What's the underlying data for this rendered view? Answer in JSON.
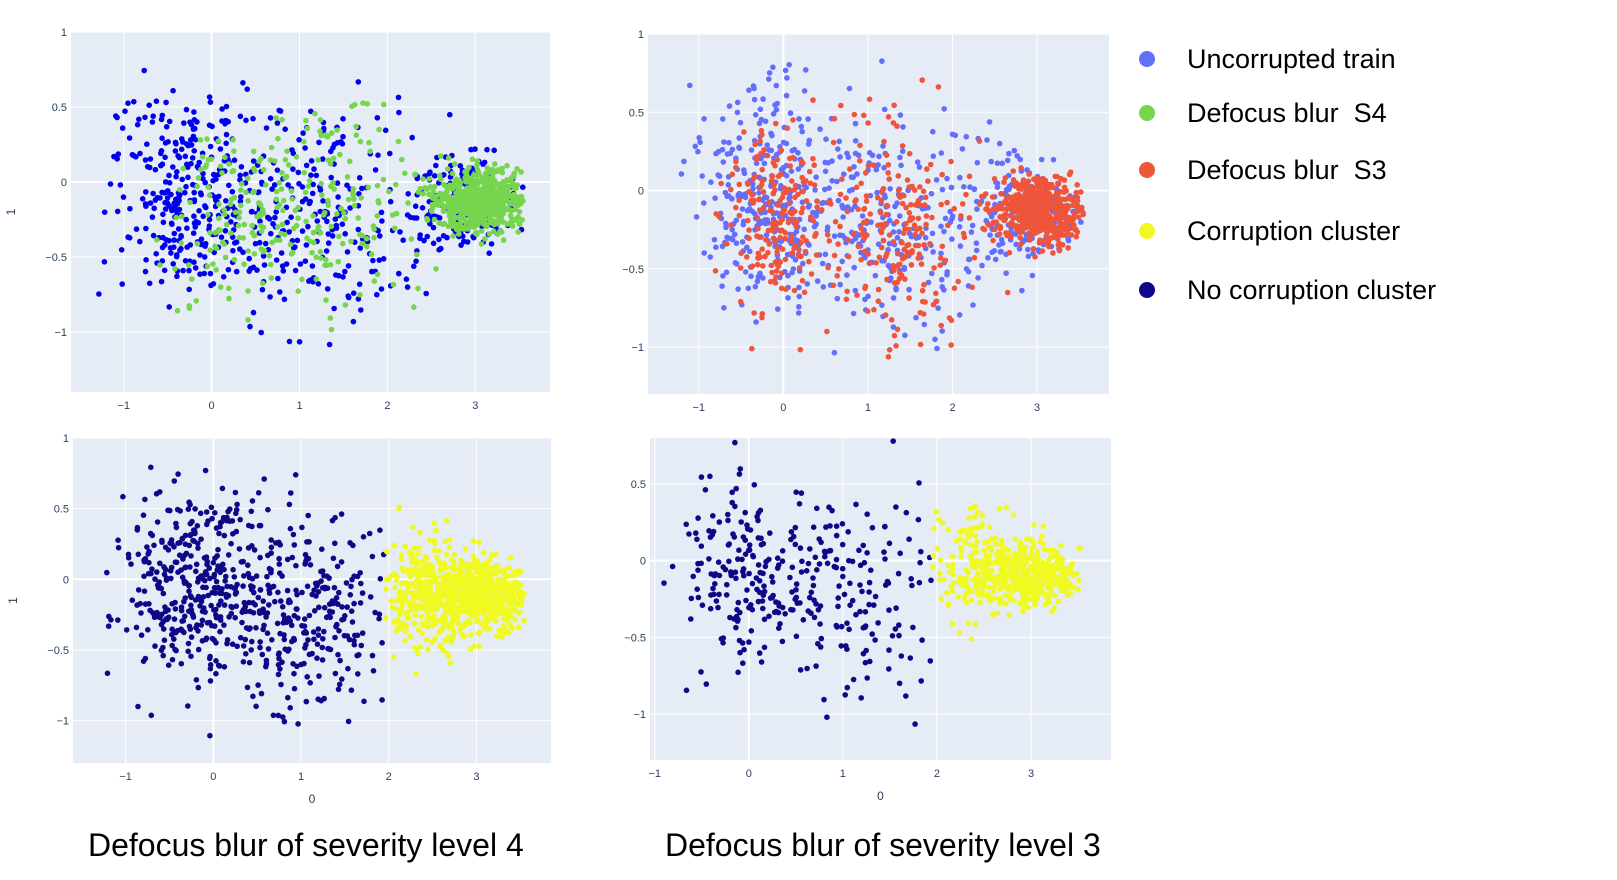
{
  "colors": {
    "plot_bg": "#e5ecf6",
    "grid": "#ffffff",
    "uncorrupted_s4_panel": "#0000ee",
    "defocus_s4": "#76d54d",
    "uncorrupted_train": "#636efa",
    "defocus_s3": "#ef553b",
    "corruption_cluster": "#f0f921",
    "no_corruption_cluster": "#0d0887"
  },
  "legend": {
    "items": [
      {
        "label": "Uncorrupted train",
        "color": "#636efa"
      },
      {
        "label": "Defocus blur  S4",
        "color": "#76d54d"
      },
      {
        "label": "Defocus blur  S3",
        "color": "#ef553b"
      },
      {
        "label": "Corruption cluster",
        "color": "#f0f921"
      },
      {
        "label": "No corruption cluster",
        "color": "#0d0887"
      }
    ]
  },
  "captions": {
    "left": "Defocus blur of severity level 4",
    "right": "Defocus blur of severity level 3"
  },
  "chart_data": [
    {
      "type": "scatter",
      "panel": "top-left",
      "xlabel": "",
      "ylabel": "1",
      "xlim": [
        -1.6,
        3.85
      ],
      "ylim": [
        -1.4,
        1.0
      ],
      "xticks": [
        -1,
        0,
        1,
        2,
        3
      ],
      "yticks": [
        -1,
        -0.5,
        0,
        0.5,
        1
      ],
      "ytick_labels": [
        "−1",
        "−0.5",
        "0",
        "0.5",
        "1"
      ],
      "xtick_labels": [
        "−1",
        "0",
        "1",
        "2",
        "3"
      ],
      "grid": true,
      "series": [
        {
          "color": "#0000ee",
          "gen": {
            "seed": 11,
            "count": 700,
            "clusters": [
              {
                "w": 0.42,
                "cx": -0.25,
                "cy": -0.05,
                "sx": 0.4,
                "sy": 0.35
              },
              {
                "w": 0.33,
                "cx": 1.2,
                "cy": -0.25,
                "sx": 0.55,
                "sy": 0.38
              },
              {
                "w": 0.25,
                "cx": 2.85,
                "cy": -0.12,
                "sx": 0.35,
                "sy": 0.18
              }
            ]
          }
        },
        {
          "color": "#76d54d",
          "gen": {
            "seed": 23,
            "count": 900,
            "clusters": [
              {
                "w": 0.12,
                "cx": 0.2,
                "cy": -0.2,
                "sx": 0.35,
                "sy": 0.3
              },
              {
                "w": 0.18,
                "cx": 1.4,
                "cy": -0.2,
                "sx": 0.5,
                "sy": 0.35
              },
              {
                "w": 0.7,
                "cx": 3.05,
                "cy": -0.13,
                "sx": 0.28,
                "sy": 0.1
              }
            ]
          }
        }
      ]
    },
    {
      "type": "scatter",
      "panel": "top-right",
      "xlabel": "",
      "ylabel": "",
      "xlim": [
        -1.6,
        3.85
      ],
      "ylim": [
        -1.3,
        1.0
      ],
      "xticks": [
        -1,
        0,
        1,
        2,
        3
      ],
      "yticks": [
        -1,
        -0.5,
        0,
        0.5,
        1
      ],
      "ytick_labels": [
        "−1",
        "−0.5",
        "0",
        "0.5",
        "1"
      ],
      "xtick_labels": [
        "−1",
        "0",
        "1",
        "2",
        "3"
      ],
      "grid": true,
      "series": [
        {
          "color": "#636efa",
          "gen": {
            "seed": 37,
            "count": 700,
            "clusters": [
              {
                "w": 0.42,
                "cx": -0.25,
                "cy": -0.05,
                "sx": 0.4,
                "sy": 0.35
              },
              {
                "w": 0.33,
                "cx": 1.2,
                "cy": -0.25,
                "sx": 0.55,
                "sy": 0.38
              },
              {
                "w": 0.25,
                "cx": 2.85,
                "cy": -0.12,
                "sx": 0.35,
                "sy": 0.18
              }
            ]
          }
        },
        {
          "color": "#ef553b",
          "gen": {
            "seed": 53,
            "count": 900,
            "clusters": [
              {
                "w": 0.2,
                "cx": -0.1,
                "cy": -0.15,
                "sx": 0.3,
                "sy": 0.3
              },
              {
                "w": 0.25,
                "cx": 1.3,
                "cy": -0.25,
                "sx": 0.55,
                "sy": 0.35
              },
              {
                "w": 0.55,
                "cx": 3.05,
                "cy": -0.13,
                "sx": 0.27,
                "sy": 0.1
              }
            ]
          }
        }
      ]
    },
    {
      "type": "scatter",
      "panel": "bottom-left",
      "xlabel": "0",
      "ylabel": "1",
      "xlim": [
        -1.6,
        3.85
      ],
      "ylim": [
        -1.3,
        1.0
      ],
      "xticks": [
        -1,
        0,
        1,
        2,
        3
      ],
      "yticks": [
        -1,
        -0.5,
        0,
        0.5,
        1
      ],
      "ytick_labels": [
        "−1",
        "−0.5",
        "0",
        "0.5",
        "1"
      ],
      "xtick_labels": [
        "−1",
        "0",
        "1",
        "2",
        "3"
      ],
      "grid": true,
      "series": [
        {
          "color": "#0d0887",
          "gen": {
            "seed": 71,
            "count": 650,
            "xmax": 1.95,
            "clusters": [
              {
                "w": 0.55,
                "cx": -0.25,
                "cy": -0.05,
                "sx": 0.4,
                "sy": 0.35
              },
              {
                "w": 0.45,
                "cx": 1.1,
                "cy": -0.25,
                "sx": 0.5,
                "sy": 0.38
              }
            ]
          }
        },
        {
          "color": "#f0f921",
          "gen": {
            "seed": 89,
            "count": 900,
            "xmin": 1.95,
            "clusters": [
              {
                "w": 0.3,
                "cx": 2.4,
                "cy": -0.1,
                "sx": 0.3,
                "sy": 0.22
              },
              {
                "w": 0.7,
                "cx": 3.0,
                "cy": -0.12,
                "sx": 0.3,
                "sy": 0.12
              }
            ]
          }
        }
      ]
    },
    {
      "type": "scatter",
      "panel": "bottom-right",
      "xlabel": "0",
      "ylabel": "",
      "xlim": [
        -1.05,
        3.85
      ],
      "ylim": [
        -1.3,
        0.8
      ],
      "xticks": [
        -1,
        0,
        1,
        2,
        3
      ],
      "yticks": [
        -1,
        -0.5,
        0,
        0.5
      ],
      "ytick_labels": [
        "−1",
        "−0.5",
        "0",
        "0.5"
      ],
      "xtick_labels": [
        "−1",
        "0",
        "1",
        "2",
        "3"
      ],
      "grid": true,
      "series": [
        {
          "color": "#0d0887",
          "gen": {
            "seed": 97,
            "count": 330,
            "xmax": 2.0,
            "clusters": [
              {
                "w": 0.55,
                "cx": -0.05,
                "cy": -0.05,
                "sx": 0.35,
                "sy": 0.32
              },
              {
                "w": 0.45,
                "cx": 1.2,
                "cy": -0.25,
                "sx": 0.45,
                "sy": 0.35
              }
            ]
          }
        },
        {
          "color": "#f0f921",
          "gen": {
            "seed": 113,
            "count": 550,
            "xmin": 1.95,
            "clusters": [
              {
                "w": 0.3,
                "cx": 2.4,
                "cy": -0.05,
                "sx": 0.28,
                "sy": 0.2
              },
              {
                "w": 0.7,
                "cx": 3.0,
                "cy": -0.1,
                "sx": 0.28,
                "sy": 0.1
              }
            ]
          }
        }
      ]
    }
  ]
}
